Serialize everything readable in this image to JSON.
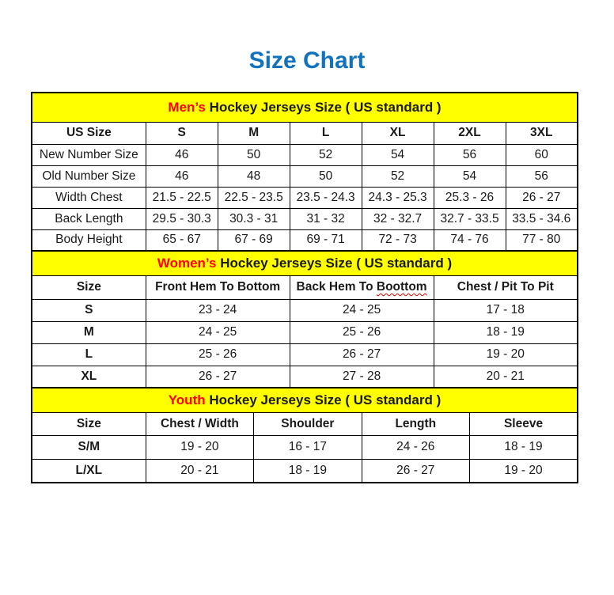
{
  "page": {
    "title": "Size Chart"
  },
  "colors": {
    "title_blue": "#1273BC",
    "band_yellow": "#FFFF00",
    "accent_red": "#FF0000",
    "squiggle_red": "#D40000",
    "border_black": "#000000",
    "text_black": "#1A1A1A"
  },
  "sections": [
    {
      "id": "men",
      "band": {
        "highlight": "Men’s",
        "rest": " Hockey Jerseys Size ( US standard )"
      },
      "header": [
        "US Size",
        "S",
        "M",
        "L",
        "XL",
        "2XL",
        "3XL"
      ],
      "rows": [
        {
          "label": "New Number Size",
          "cells": [
            "46",
            "50",
            "52",
            "54",
            "56",
            "60"
          ]
        },
        {
          "label": "Old Number Size",
          "cells": [
            "46",
            "48",
            "50",
            "52",
            "54",
            "56"
          ]
        },
        {
          "label": "Width Chest",
          "cells": [
            "21.5 - 22.5",
            "22.5 - 23.5",
            "23.5 - 24.3",
            "24.3 - 25.3",
            "25.3 - 26",
            "26 - 27"
          ]
        },
        {
          "label": "Back Length",
          "cells": [
            "29.5 - 30.3",
            "30.3 - 31",
            "31 - 32",
            "32 - 32.7",
            "32.7 - 33.5",
            "33.5 - 34.6"
          ]
        },
        {
          "label": "Body Height",
          "cells": [
            "65 - 67",
            "67 - 69",
            "69 - 71",
            "72 - 73",
            "74 - 76",
            "77 - 80"
          ]
        }
      ]
    },
    {
      "id": "women",
      "band": {
        "highlight": "Women’s",
        "rest": " Hockey Jerseys Size ( US standard )"
      },
      "header": [
        "Size",
        "Front Hem To Bottom",
        {
          "prefix": "Back Hem To ",
          "underlined": "Boottom"
        },
        "Chest / Pit To Pit"
      ],
      "rows": [
        {
          "label": "S",
          "cells": [
            "23 - 24",
            "24 - 25",
            "17 - 18"
          ]
        },
        {
          "label": "M",
          "cells": [
            "24 - 25",
            "25 - 26",
            "18 - 19"
          ]
        },
        {
          "label": "L",
          "cells": [
            "25 - 26",
            "26 - 27",
            "19 - 20"
          ]
        },
        {
          "label": "XL",
          "cells": [
            "26 - 27",
            "27 - 28",
            "20 - 21"
          ]
        }
      ]
    },
    {
      "id": "youth",
      "band": {
        "highlight": "Youth",
        "rest": " Hockey Jerseys Size ( US standard )"
      },
      "header": [
        "Size",
        "Chest / Width",
        "Shoulder",
        "Length",
        "Sleeve"
      ],
      "rows": [
        {
          "label": "S/M",
          "cells": [
            "19 - 20",
            "16 - 17",
            "24 - 26",
            "18 - 19"
          ]
        },
        {
          "label": "L/XL",
          "cells": [
            "20 - 21",
            "18 - 19",
            "26 - 27",
            "19 - 20"
          ]
        }
      ]
    }
  ]
}
